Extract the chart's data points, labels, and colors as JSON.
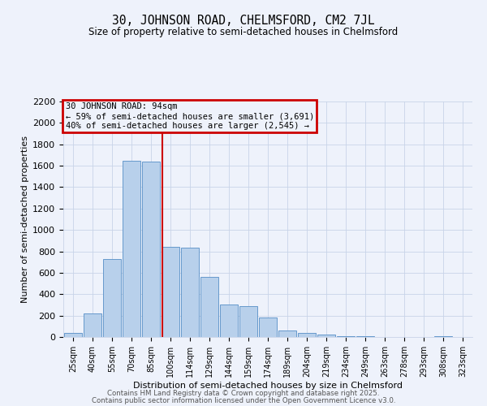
{
  "title": "30, JOHNSON ROAD, CHELMSFORD, CM2 7JL",
  "subtitle": "Size of property relative to semi-detached houses in Chelmsford",
  "xlabel": "Distribution of semi-detached houses by size in Chelmsford",
  "ylabel": "Number of semi-detached properties",
  "categories": [
    "25sqm",
    "40sqm",
    "55sqm",
    "70sqm",
    "85sqm",
    "100sqm",
    "114sqm",
    "129sqm",
    "144sqm",
    "159sqm",
    "174sqm",
    "189sqm",
    "204sqm",
    "219sqm",
    "234sqm",
    "249sqm",
    "263sqm",
    "278sqm",
    "293sqm",
    "308sqm",
    "323sqm"
  ],
  "values": [
    35,
    220,
    730,
    1650,
    1640,
    845,
    835,
    565,
    300,
    285,
    180,
    60,
    35,
    22,
    10,
    5,
    0,
    0,
    0,
    8,
    0
  ],
  "bar_color": "#b8d0eb",
  "bar_edge_color": "#6699cc",
  "vline_color": "#cc0000",
  "annotation_title": "30 JOHNSON ROAD: 94sqm",
  "annotation_line1": "← 59% of semi-detached houses are smaller (3,691)",
  "annotation_line2": "40% of semi-detached houses are larger (2,545) →",
  "annotation_box_color": "#cc0000",
  "ylim_max": 2200,
  "yticks": [
    0,
    200,
    400,
    600,
    800,
    1000,
    1200,
    1400,
    1600,
    1800,
    2000,
    2200
  ],
  "background_color": "#eef2fb",
  "footer1": "Contains HM Land Registry data © Crown copyright and database right 2025.",
  "footer2": "Contains public sector information licensed under the Open Government Licence v3.0."
}
